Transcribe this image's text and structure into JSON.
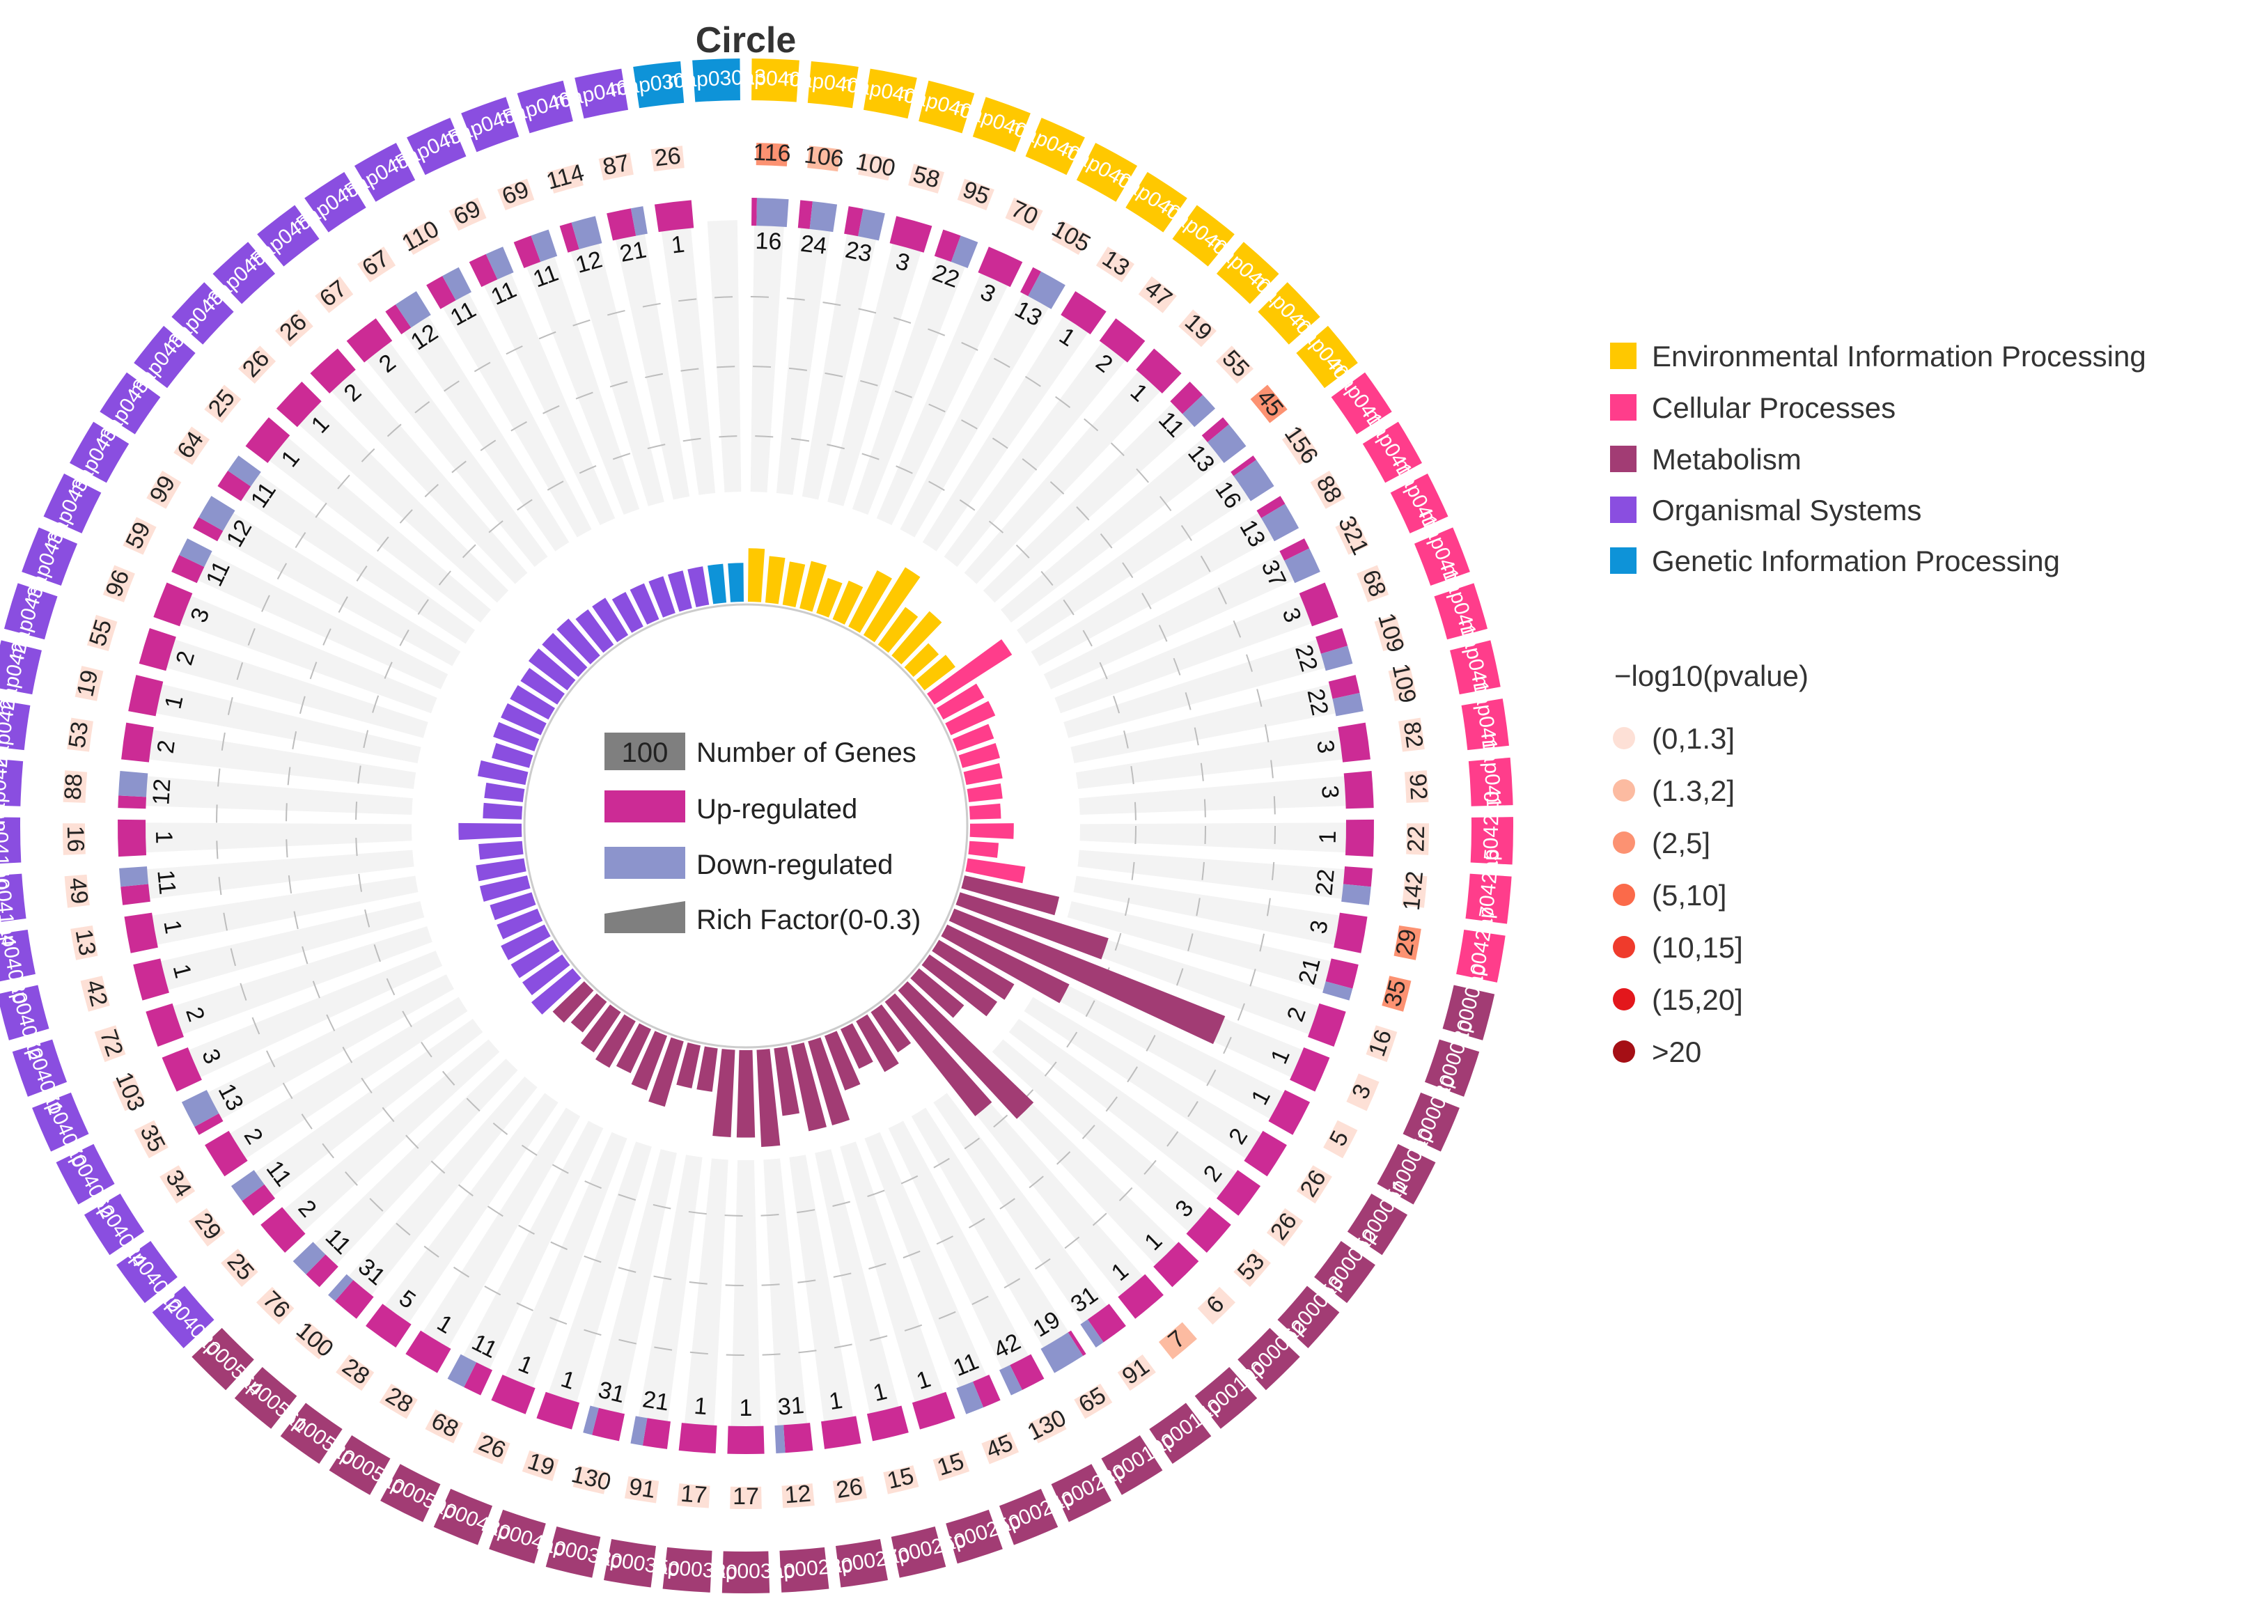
{
  "colors": {
    "categories": {
      "Environmental Information Processing": "#FFC800",
      "Cellular Processes": "#FF3D8B",
      "Metabolism": "#A23C74",
      "Organismal Systems": "#8A4EE0",
      "Genetic Information Processing": "#0E93D8"
    },
    "up": "#CC2B95",
    "down": "#8C94CC",
    "pvalue": [
      "#FDE0D6",
      "#FCBBA1",
      "#FC9272",
      "#FB6A4A",
      "#EF3B2C",
      "#E3171C",
      "#A50F15"
    ],
    "track_bg": "#F3F3F3",
    "dash": "#BDBDBD",
    "legend_grey": "#7F7F7F"
  },
  "chart_data": {
    "type": "circular-bar",
    "title": "Circle",
    "center_legend": {
      "genes_value": "100",
      "genes_label": "Number of Genes",
      "up_label": "Up-regulated",
      "down_label": "Down-regulated",
      "rich_label": "Rich Factor(0-0.3)"
    },
    "category_legend": {
      "items": [
        "Environmental Information Processing",
        "Cellular Processes",
        "Metabolism",
        "Organismal Systems",
        "Genetic Information Processing"
      ]
    },
    "pvalue_legend": {
      "title": "−log10(pvalue)",
      "items": [
        "(0,1.3]",
        "(1.3,2]",
        "(2,5]",
        "(5,10]",
        "(10,15]",
        "(15,20]",
        ">20"
      ]
    },
    "pathways": [
      {
        "id": "map04010",
        "cat": "Environmental Information Processing",
        "count": "116",
        "up": "1",
        "down": "6",
        "rich": 0.055,
        "p": 2
      },
      {
        "id": "map04012",
        "cat": "Environmental Information Processing",
        "count": "106",
        "up": "2",
        "down": "4",
        "rich": 0.048,
        "p": 1
      },
      {
        "id": "map04014",
        "cat": "Environmental Information Processing",
        "count": "100",
        "up": "2",
        "down": "3",
        "rich": 0.045,
        "p": 0
      },
      {
        "id": "map04015",
        "cat": "Environmental Information Processing",
        "count": "58",
        "up": "3",
        "down": "",
        "rich": 0.05,
        "p": 0
      },
      {
        "id": "map04020",
        "cat": "Environmental Information Processing",
        "count": "95",
        "up": "2",
        "down": "2",
        "rich": 0.038,
        "p": 0
      },
      {
        "id": "map04022",
        "cat": "Environmental Information Processing",
        "count": "70",
        "up": "3",
        "down": "",
        "rich": 0.043,
        "p": 0
      },
      {
        "id": "map04024",
        "cat": "Environmental Information Processing",
        "count": "105",
        "up": "1",
        "down": "3",
        "rich": 0.065,
        "p": 0
      },
      {
        "id": "map04062",
        "cat": "Environmental Information Processing",
        "count": "13",
        "up": "1",
        "down": "",
        "rich": 0.082,
        "p": 0
      },
      {
        "id": "map04064",
        "cat": "Environmental Information Processing",
        "count": "47",
        "up": "2",
        "down": "",
        "rich": 0.048,
        "p": 0
      },
      {
        "id": "map04066",
        "cat": "Environmental Information Processing",
        "count": "19",
        "up": "1",
        "down": "",
        "rich": 0.06,
        "p": 0
      },
      {
        "id": "map04068",
        "cat": "Environmental Information Processing",
        "count": "55",
        "up": "1",
        "down": "1",
        "rich": 0.035,
        "p": 0
      },
      {
        "id": "map04072",
        "cat": "Environmental Information Processing",
        "count": "45",
        "up": "1",
        "down": "3",
        "rich": 0.04,
        "p": 2
      },
      {
        "id": "map04110",
        "cat": "Cellular Processes",
        "count": "156",
        "up": "1",
        "down": "6",
        "rich": 0.095,
        "p": 0
      },
      {
        "id": "map04114",
        "cat": "Cellular Processes",
        "count": "88",
        "up": "1",
        "down": "3",
        "rich": 0.048,
        "p": 0
      },
      {
        "id": "map04115",
        "cat": "Cellular Processes",
        "count": "321",
        "up": "3",
        "down": "7",
        "rich": 0.05,
        "p": 0
      },
      {
        "id": "map04140",
        "cat": "Cellular Processes",
        "count": "68",
        "up": "3",
        "down": "",
        "rich": 0.04,
        "p": 0
      },
      {
        "id": "map04144",
        "cat": "Cellular Processes",
        "count": "109",
        "up": "2",
        "down": "2",
        "rich": 0.04,
        "p": 0
      },
      {
        "id": "map04145",
        "cat": "Cellular Processes",
        "count": "109",
        "up": "2",
        "down": "2",
        "rich": 0.038,
        "p": 0
      },
      {
        "id": "map04146",
        "cat": "Cellular Processes",
        "count": "82",
        "up": "3",
        "down": "",
        "rich": 0.035,
        "p": 0
      },
      {
        "id": "map04150",
        "cat": "Cellular Processes",
        "count": "92",
        "up": "3",
        "down": "",
        "rich": 0.032,
        "p": 0
      },
      {
        "id": "map04210",
        "cat": "Cellular Processes",
        "count": "22",
        "up": "1",
        "down": "",
        "rich": 0.045,
        "p": 0
      },
      {
        "id": "map04215",
        "cat": "Cellular Processes",
        "count": "142",
        "up": "2",
        "down": "2",
        "rich": 0.03,
        "p": 0
      },
      {
        "id": "map04217",
        "cat": "Cellular Processes",
        "count": "29",
        "up": "3",
        "down": "",
        "rich": 0.06,
        "p": 2
      },
      {
        "id": "map00010",
        "cat": "Metabolism",
        "count": "35",
        "up": "2",
        "down": "1",
        "rich": 0.1,
        "p": 2
      },
      {
        "id": "map00020",
        "cat": "Metabolism",
        "count": "16",
        "up": "2",
        "down": "",
        "rich": 0.16,
        "p": 0
      },
      {
        "id": "map00030",
        "cat": "Metabolism",
        "count": "3",
        "up": "1",
        "down": "",
        "rich": 0.3,
        "p": 0
      },
      {
        "id": "map00040",
        "cat": "Metabolism",
        "count": "5",
        "up": "1",
        "down": "",
        "rich": 0.14,
        "p": 0
      },
      {
        "id": "map00051",
        "cat": "Metabolism",
        "count": "26",
        "up": "2",
        "down": "",
        "rich": 0.09,
        "p": 0
      },
      {
        "id": "map00052",
        "cat": "Metabolism",
        "count": "26",
        "up": "2",
        "down": "",
        "rich": 0.085,
        "p": 0
      },
      {
        "id": "map00053",
        "cat": "Metabolism",
        "count": "53",
        "up": "3",
        "down": "",
        "rich": 0.06,
        "p": 0
      },
      {
        "id": "map00062",
        "cat": "Metabolism",
        "count": "6",
        "up": "1",
        "down": "",
        "rich": 0.18,
        "p": 0
      },
      {
        "id": "map00100",
        "cat": "Metabolism",
        "count": "7",
        "up": "1",
        "down": "",
        "rich": 0.15,
        "p": 1
      },
      {
        "id": "map00140",
        "cat": "Metabolism",
        "count": "91",
        "up": "3",
        "down": "1",
        "rich": 0.05,
        "p": 0
      },
      {
        "id": "map00190",
        "cat": "Metabolism",
        "count": "65",
        "up": "1",
        "down": "9",
        "rich": 0.06,
        "p": 0
      },
      {
        "id": "map00230",
        "cat": "Metabolism",
        "count": "130",
        "up": "4",
        "down": "2",
        "rich": 0.045,
        "p": 0
      },
      {
        "id": "map00240",
        "cat": "Metabolism",
        "count": "45",
        "up": "1",
        "down": "1",
        "rich": 0.06,
        "p": 0
      },
      {
        "id": "map00250",
        "cat": "Metabolism",
        "count": "15",
        "up": "1",
        "down": "",
        "rich": 0.09,
        "p": 0
      },
      {
        "id": "map00260",
        "cat": "Metabolism",
        "count": "15",
        "up": "1",
        "down": "",
        "rich": 0.09,
        "p": 0
      },
      {
        "id": "map00270",
        "cat": "Metabolism",
        "count": "26",
        "up": "1",
        "down": "",
        "rich": 0.07,
        "p": 0
      },
      {
        "id": "map00280",
        "cat": "Metabolism",
        "count": "12",
        "up": "3",
        "down": "1",
        "rich": 0.1,
        "p": 0
      },
      {
        "id": "map00310",
        "cat": "Metabolism",
        "count": "17",
        "up": "1",
        "down": "",
        "rich": 0.09,
        "p": 0
      },
      {
        "id": "map00330",
        "cat": "Metabolism",
        "count": "17",
        "up": "1",
        "down": "",
        "rich": 0.09,
        "p": 0
      },
      {
        "id": "map00350",
        "cat": "Metabolism",
        "count": "91",
        "up": "2",
        "down": "1",
        "rich": 0.045,
        "p": 0
      },
      {
        "id": "map00380",
        "cat": "Metabolism",
        "count": "130",
        "up": "3",
        "down": "1",
        "rich": 0.045,
        "p": 0
      },
      {
        "id": "map00410",
        "cat": "Metabolism",
        "count": "19",
        "up": "1",
        "down": "",
        "rich": 0.07,
        "p": 0
      },
      {
        "id": "map00480",
        "cat": "Metabolism",
        "count": "26",
        "up": "1",
        "down": "",
        "rich": 0.06,
        "p": 0
      },
      {
        "id": "map00500",
        "cat": "Metabolism",
        "count": "68",
        "up": "1",
        "down": "1",
        "rich": 0.05,
        "p": 0
      },
      {
        "id": "map00510",
        "cat": "Metabolism",
        "count": "28",
        "up": "1",
        "down": "",
        "rich": 0.055,
        "p": 0
      },
      {
        "id": "map00520",
        "cat": "Metabolism",
        "count": "28",
        "up": "5",
        "down": "",
        "rich": 0.05,
        "p": 0
      },
      {
        "id": "map00561",
        "cat": "Metabolism",
        "count": "100",
        "up": "3",
        "down": "1",
        "rich": 0.04,
        "p": 0
      },
      {
        "id": "map00564",
        "cat": "Metabolism",
        "count": "76",
        "up": "1",
        "down": "1",
        "rich": 0.045,
        "p": 0
      },
      {
        "id": "map04020",
        "cat": "Organismal Systems",
        "count": "25",
        "up": "2",
        "down": "",
        "rich": 0.055,
        "p": 0
      },
      {
        "id": "map04022",
        "cat": "Organismal Systems",
        "count": "29",
        "up": "1",
        "down": "1",
        "rich": 0.05,
        "p": 0
      },
      {
        "id": "map04024",
        "cat": "Organismal Systems",
        "count": "34",
        "up": "2",
        "down": "",
        "rich": 0.05,
        "p": 0
      },
      {
        "id": "map04062",
        "cat": "Organismal Systems",
        "count": "35",
        "up": "1",
        "down": "3",
        "rich": 0.05,
        "p": 0
      },
      {
        "id": "map04070",
        "cat": "Organismal Systems",
        "count": "103",
        "up": "3",
        "down": "",
        "rich": 0.045,
        "p": 0
      },
      {
        "id": "map04071",
        "cat": "Organismal Systems",
        "count": "72",
        "up": "2",
        "down": "",
        "rich": 0.045,
        "p": 0
      },
      {
        "id": "map04072",
        "cat": "Organismal Systems",
        "count": "42",
        "up": "1",
        "down": "",
        "rich": 0.05,
        "p": 0
      },
      {
        "id": "map04080",
        "cat": "Organismal Systems",
        "count": "13",
        "up": "1",
        "down": "",
        "rich": 0.05,
        "p": 0
      },
      {
        "id": "map04114",
        "cat": "Organismal Systems",
        "count": "49",
        "up": "1",
        "down": "1",
        "rich": 0.045,
        "p": 0
      },
      {
        "id": "map04140",
        "cat": "Organismal Systems",
        "count": "16",
        "up": "1",
        "down": "",
        "rich": 0.065,
        "p": 0
      },
      {
        "id": "map04210",
        "cat": "Organismal Systems",
        "count": "88",
        "up": "1",
        "down": "2",
        "rich": 0.04,
        "p": 0
      },
      {
        "id": "map04212",
        "cat": "Organismal Systems",
        "count": "53",
        "up": "2",
        "down": "",
        "rich": 0.04,
        "p": 0
      },
      {
        "id": "map04213",
        "cat": "Organismal Systems",
        "count": "19",
        "up": "1",
        "down": "",
        "rich": 0.05,
        "p": 0
      },
      {
        "id": "map04310",
        "cat": "Organismal Systems",
        "count": "55",
        "up": "2",
        "down": "",
        "rich": 0.04,
        "p": 0
      },
      {
        "id": "map04340",
        "cat": "Organismal Systems",
        "count": "96",
        "up": "3",
        "down": "",
        "rich": 0.045,
        "p": 0
      },
      {
        "id": "map04350",
        "cat": "Organismal Systems",
        "count": "59",
        "up": "1",
        "down": "1",
        "rich": 0.045,
        "p": 0
      },
      {
        "id": "map04360",
        "cat": "Organismal Systems",
        "count": "99",
        "up": "1",
        "down": "2",
        "rich": 0.045,
        "p": 0
      },
      {
        "id": "map04370",
        "cat": "Organismal Systems",
        "count": "64",
        "up": "1",
        "down": "1",
        "rich": 0.045,
        "p": 0
      },
      {
        "id": "map04390",
        "cat": "Organismal Systems",
        "count": "25",
        "up": "1",
        "down": "",
        "rich": 0.05,
        "p": 0
      },
      {
        "id": "map04391",
        "cat": "Organismal Systems",
        "count": "26",
        "up": "1",
        "down": "",
        "rich": 0.05,
        "p": 0
      },
      {
        "id": "map04510",
        "cat": "Organismal Systems",
        "count": "26",
        "up": "2",
        "down": "",
        "rich": 0.05,
        "p": 0
      },
      {
        "id": "map04512",
        "cat": "Organismal Systems",
        "count": "67",
        "up": "2",
        "down": "",
        "rich": 0.045,
        "p": 0
      },
      {
        "id": "map04520",
        "cat": "Organismal Systems",
        "count": "67",
        "up": "1",
        "down": "2",
        "rich": 0.045,
        "p": 0
      },
      {
        "id": "map04530",
        "cat": "Organismal Systems",
        "count": "110",
        "up": "1",
        "down": "1",
        "rich": 0.04,
        "p": 0
      },
      {
        "id": "map04540",
        "cat": "Organismal Systems",
        "count": "69",
        "up": "1",
        "down": "1",
        "rich": 0.04,
        "p": 0
      },
      {
        "id": "map04550",
        "cat": "Organismal Systems",
        "count": "69",
        "up": "1",
        "down": "1",
        "rich": 0.04,
        "p": 0
      },
      {
        "id": "map04610",
        "cat": "Organismal Systems",
        "count": "114",
        "up": "1",
        "down": "2",
        "rich": 0.04,
        "p": 0
      },
      {
        "id": "map04611",
        "cat": "Organismal Systems",
        "count": "87",
        "up": "2",
        "down": "1",
        "rich": 0.04,
        "p": 0
      },
      {
        "id": "map03010",
        "cat": "Genetic Information Processing",
        "count": "26",
        "up": "1",
        "down": "",
        "rich": 0.04,
        "p": 0
      },
      {
        "id": "map03013",
        "cat": "Genetic Information Processing",
        "count": "",
        "up": "",
        "down": "",
        "rich": 0.04,
        "p": 0
      }
    ]
  }
}
